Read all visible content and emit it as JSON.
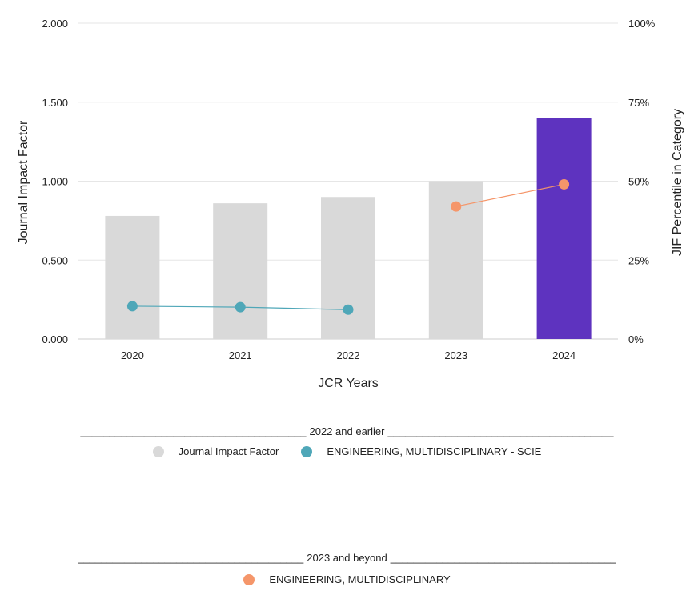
{
  "chart_data": {
    "type": "bar",
    "xlabel": "JCR Years",
    "ylabel": "Journal Impact Factor",
    "y2label": "JIF Percentile in Category",
    "categories": [
      "2020",
      "2021",
      "2022",
      "2023",
      "2024"
    ],
    "ylim": [
      0,
      2.0
    ],
    "y2lim": [
      0,
      100
    ],
    "yticks": [
      "0.000",
      "0.500",
      "1.000",
      "1.500",
      "2.000"
    ],
    "y2ticks": [
      "0%",
      "25%",
      "50%",
      "75%",
      "100%"
    ],
    "bars": {
      "name": "Journal Impact Factor",
      "values": [
        0.78,
        0.86,
        0.9,
        1.0,
        1.4
      ],
      "colors": [
        "#d9d9d9",
        "#d9d9d9",
        "#d9d9d9",
        "#d9d9d9",
        "#5e33bf"
      ]
    },
    "series": [
      {
        "name": "ENGINEERING, MULTIDISCIPLINARY - SCIE",
        "color": "#4fa7b8",
        "points": [
          [
            "2020",
            10.4
          ],
          [
            "2021",
            10.1
          ],
          [
            "2022",
            9.3
          ]
        ]
      },
      {
        "name": "ENGINEERING, MULTIDISCIPLINARY",
        "color": "#f5966a",
        "points": [
          [
            "2023",
            42.0
          ],
          [
            "2024",
            49.0
          ]
        ]
      }
    ],
    "grid": true
  },
  "legend": {
    "group1_title": "2022 and earlier",
    "group1_items": [
      {
        "label": "Journal Impact Factor",
        "color": "#d9d9d9"
      },
      {
        "label": "ENGINEERING, MULTIDISCIPLINARY - SCIE",
        "color": "#4fa7b8"
      }
    ],
    "group2_title": "2023 and beyond",
    "group2_items": [
      {
        "label": "ENGINEERING, MULTIDISCIPLINARY",
        "color": "#f5966a"
      }
    ],
    "rule": "_______________________________________"
  }
}
